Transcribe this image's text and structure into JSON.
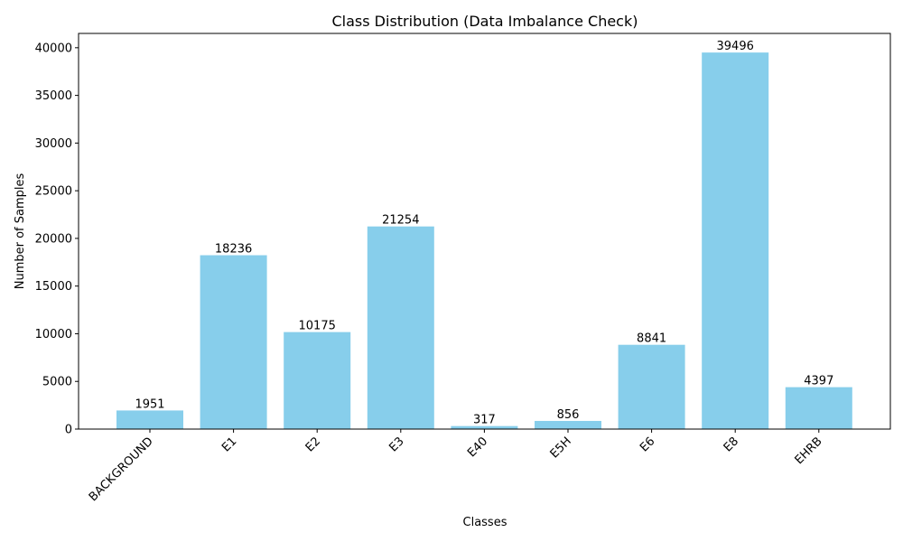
{
  "chart_data": {
    "type": "bar",
    "title": "Class Distribution (Data Imbalance Check)",
    "xlabel": "Classes",
    "ylabel": "Number of Samples",
    "categories": [
      "BACKGROUND",
      "E1",
      "E2",
      "E3",
      "E40",
      "E5H",
      "E6",
      "E8",
      "EHRB"
    ],
    "values": [
      1951,
      18236,
      10175,
      21254,
      317,
      856,
      8841,
      39496,
      4397
    ],
    "yticks": [
      0,
      5000,
      10000,
      15000,
      20000,
      25000,
      30000,
      35000,
      40000
    ],
    "ylim": [
      0,
      41500
    ],
    "bar_color": "#87ceeb",
    "grid": false,
    "legend": "none"
  }
}
